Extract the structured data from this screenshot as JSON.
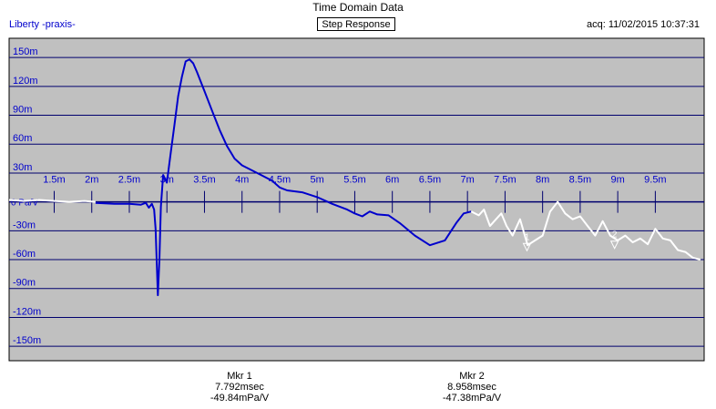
{
  "header": {
    "title": "Time Domain Data",
    "left_label": "Liberty -praxis-",
    "subtitle": "Step Response",
    "acq": "acq: 11/02/2015 10:37:31"
  },
  "markers": [
    {
      "label": "Mkr 1",
      "time": "7.792msec",
      "value": "-49.84mPa/V",
      "marker_label": "1",
      "x": 7.792,
      "y": -49.84
    },
    {
      "label": "Mkr 2",
      "time": "8.958msec",
      "value": "-47.38mPa/V",
      "marker_label": "2",
      "x": 8.958,
      "y": -47.38
    }
  ],
  "colors": {
    "plot_bg": "#c0c0c0",
    "grid": "#00006e",
    "axis_text": "#0000cc",
    "trace_blue": "#0000cc",
    "trace_white": "#ffffff"
  },
  "chart_data": {
    "type": "line",
    "title": "Time Domain Data",
    "subtitle": "Step Response",
    "y_unit_label": "0 Pa/V",
    "xlim": [
      0.9,
      10.15
    ],
    "ylim": [
      -165,
      170
    ],
    "y_ticks": [
      150,
      120,
      90,
      60,
      30,
      -30,
      -60,
      -90,
      -120,
      -150
    ],
    "y_tick_labels": [
      "150m",
      "120m",
      "90m",
      "60m",
      "30m",
      "-30m",
      "-60m",
      "-90m",
      "-120m",
      "-150m"
    ],
    "x_ticks": [
      1.5,
      2,
      2.5,
      3,
      3.5,
      4,
      4.5,
      5,
      5.5,
      6,
      6.5,
      7,
      7.5,
      8,
      8.5,
      9,
      9.5
    ],
    "x_tick_labels": [
      "1.5m",
      "2m",
      "2.5m",
      "3m",
      "3.5m",
      "4m",
      "4.5m",
      "5m",
      "5.5m",
      "6m",
      "6.5m",
      "7m",
      "7.5m",
      "8m",
      "8.5m",
      "9m",
      "9.5m"
    ],
    "grid": true,
    "series": [
      {
        "color": "#ffffff",
        "points": [
          [
            0.9,
            2
          ],
          [
            1.1,
            1
          ],
          [
            1.3,
            2
          ],
          [
            1.5,
            1
          ],
          [
            1.7,
            0
          ],
          [
            1.9,
            1
          ],
          [
            2.05,
            0
          ]
        ]
      },
      {
        "color": "#0000cc",
        "points": [
          [
            2.05,
            -1
          ],
          [
            2.3,
            -2
          ],
          [
            2.5,
            -2
          ],
          [
            2.65,
            -3
          ],
          [
            2.72,
            -1
          ],
          [
            2.76,
            -6
          ],
          [
            2.8,
            -2
          ],
          [
            2.83,
            -8
          ],
          [
            2.85,
            -28
          ],
          [
            2.87,
            -75
          ],
          [
            2.88,
            -97
          ],
          [
            2.9,
            -60
          ],
          [
            2.92,
            -5
          ],
          [
            2.95,
            28
          ],
          [
            3.0,
            20
          ],
          [
            3.05,
            50
          ],
          [
            3.1,
            80
          ],
          [
            3.15,
            110
          ],
          [
            3.2,
            130
          ],
          [
            3.25,
            146
          ],
          [
            3.3,
            148
          ],
          [
            3.35,
            144
          ],
          [
            3.4,
            135
          ],
          [
            3.5,
            115
          ],
          [
            3.6,
            95
          ],
          [
            3.7,
            75
          ],
          [
            3.8,
            58
          ],
          [
            3.9,
            45
          ],
          [
            4.0,
            38
          ],
          [
            4.2,
            30
          ],
          [
            4.4,
            22
          ],
          [
            4.5,
            15
          ],
          [
            4.6,
            12
          ],
          [
            4.8,
            10
          ],
          [
            5.0,
            5
          ],
          [
            5.2,
            -2
          ],
          [
            5.4,
            -8
          ],
          [
            5.5,
            -12
          ],
          [
            5.6,
            -15
          ],
          [
            5.7,
            -10
          ],
          [
            5.8,
            -13
          ],
          [
            5.95,
            -14
          ],
          [
            6.1,
            -22
          ],
          [
            6.3,
            -35
          ],
          [
            6.5,
            -45
          ],
          [
            6.7,
            -40
          ],
          [
            6.85,
            -22
          ],
          [
            6.95,
            -12
          ],
          [
            7.05,
            -10
          ]
        ]
      },
      {
        "color": "#ffffff",
        "points": [
          [
            7.05,
            -10
          ],
          [
            7.15,
            -14
          ],
          [
            7.22,
            -8
          ],
          [
            7.3,
            -25
          ],
          [
            7.38,
            -18
          ],
          [
            7.45,
            -12
          ],
          [
            7.52,
            -25
          ],
          [
            7.6,
            -35
          ],
          [
            7.7,
            -18
          ],
          [
            7.8,
            -45
          ],
          [
            7.9,
            -40
          ],
          [
            8.0,
            -35
          ],
          [
            8.1,
            -10
          ],
          [
            8.2,
            0
          ],
          [
            8.3,
            -12
          ],
          [
            8.4,
            -18
          ],
          [
            8.5,
            -15
          ],
          [
            8.6,
            -25
          ],
          [
            8.7,
            -35
          ],
          [
            8.8,
            -20
          ],
          [
            8.9,
            -35
          ],
          [
            9.0,
            -40
          ],
          [
            9.1,
            -35
          ],
          [
            9.2,
            -42
          ],
          [
            9.3,
            -38
          ],
          [
            9.4,
            -44
          ],
          [
            9.5,
            -28
          ],
          [
            9.6,
            -38
          ],
          [
            9.7,
            -40
          ],
          [
            9.8,
            -50
          ],
          [
            9.9,
            -52
          ],
          [
            10.0,
            -58
          ],
          [
            10.1,
            -60
          ]
        ]
      }
    ]
  }
}
